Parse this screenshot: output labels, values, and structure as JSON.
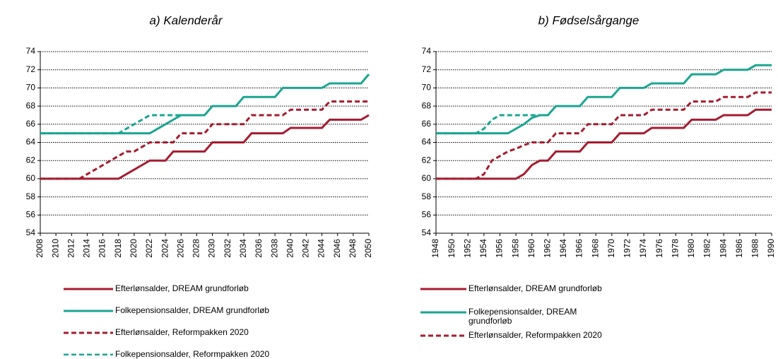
{
  "chart_data": [
    {
      "type": "line",
      "title": "a) Kalenderår",
      "x": [
        2008,
        2009,
        2010,
        2011,
        2012,
        2013,
        2014,
        2015,
        2016,
        2017,
        2018,
        2019,
        2020,
        2021,
        2022,
        2023,
        2024,
        2025,
        2026,
        2027,
        2028,
        2029,
        2030,
        2031,
        2032,
        2033,
        2034,
        2035,
        2036,
        2037,
        2038,
        2039,
        2040,
        2041,
        2042,
        2043,
        2044,
        2045,
        2046,
        2047,
        2048,
        2049,
        2050
      ],
      "xlim": [
        2008,
        2050
      ],
      "xticks": [
        2008,
        2010,
        2012,
        2014,
        2016,
        2018,
        2020,
        2022,
        2024,
        2026,
        2028,
        2030,
        2032,
        2034,
        2036,
        2038,
        2040,
        2042,
        2044,
        2046,
        2048,
        2050
      ],
      "ylim": [
        54,
        74
      ],
      "yticks": [
        54,
        56,
        58,
        60,
        62,
        64,
        66,
        68,
        70,
        72,
        74
      ],
      "grid": true,
      "series": [
        {
          "name": "Efterlønsalder, DREAM grundforløb",
          "color": "#a51c30",
          "dashed": false,
          "values": [
            60,
            60,
            60,
            60,
            60,
            60,
            60,
            60,
            60,
            60,
            60,
            60.5,
            61,
            61.5,
            62,
            62,
            62,
            63,
            63,
            63,
            63,
            63,
            64,
            64,
            64,
            64,
            64,
            65,
            65,
            65,
            65,
            65,
            65.6,
            65.6,
            65.6,
            65.6,
            65.6,
            66.5,
            66.5,
            66.5,
            66.5,
            66.5,
            67
          ]
        },
        {
          "name": "Folkepensionsalder,  DREAM grundforløb",
          "color": "#1ba592",
          "dashed": false,
          "values": [
            65,
            65,
            65,
            65,
            65,
            65,
            65,
            65,
            65,
            65,
            65,
            65,
            65,
            65,
            65,
            65.5,
            66,
            66.5,
            67,
            67,
            67,
            67,
            68,
            68,
            68,
            68,
            69,
            69,
            69,
            69,
            69,
            70,
            70,
            70,
            70,
            70,
            70,
            70.5,
            70.5,
            70.5,
            70.5,
            70.5,
            71.5
          ]
        },
        {
          "name": "Efterlønsalder, Reformpakken 2020",
          "color": "#a51c30",
          "dashed": true,
          "values": [
            60,
            60,
            60,
            60,
            60,
            60,
            60.5,
            61,
            61.5,
            62,
            62.5,
            63,
            63,
            63.5,
            64,
            64,
            64,
            64,
            65,
            65,
            65,
            65,
            66,
            66,
            66,
            66,
            66,
            67,
            67,
            67,
            67,
            67,
            67.6,
            67.6,
            67.6,
            67.6,
            67.6,
            68.5,
            68.5,
            68.5,
            68.5,
            68.5,
            68.5
          ]
        },
        {
          "name": "Folkepensionsalder,  Reformpakken 2020",
          "color": "#1ba592",
          "dashed": true,
          "values": [
            65,
            65,
            65,
            65,
            65,
            65,
            65,
            65,
            65,
            65,
            65,
            65.5,
            66,
            66.5,
            67,
            67,
            67,
            67,
            67,
            67,
            67,
            null,
            null,
            null,
            null,
            null,
            null,
            null,
            null,
            null,
            null,
            null,
            null,
            null,
            null,
            null,
            null,
            null,
            null,
            null,
            null,
            null,
            null
          ]
        }
      ]
    },
    {
      "type": "line",
      "title": "b) Fødselsårgange",
      "x": [
        1948,
        1949,
        1950,
        1951,
        1952,
        1953,
        1954,
        1955,
        1956,
        1957,
        1958,
        1959,
        1960,
        1961,
        1962,
        1963,
        1964,
        1965,
        1966,
        1967,
        1968,
        1969,
        1970,
        1971,
        1972,
        1973,
        1974,
        1975,
        1976,
        1977,
        1978,
        1979,
        1980,
        1981,
        1982,
        1983,
        1984,
        1985,
        1986,
        1987,
        1988,
        1989,
        1990
      ],
      "xlim": [
        1948,
        1990
      ],
      "xticks": [
        1948,
        1950,
        1952,
        1954,
        1956,
        1958,
        1960,
        1962,
        1964,
        1966,
        1968,
        1970,
        1972,
        1974,
        1976,
        1978,
        1980,
        1982,
        1984,
        1986,
        1988,
        1990
      ],
      "ylim": [
        54,
        74
      ],
      "yticks": [
        54,
        56,
        58,
        60,
        62,
        64,
        66,
        68,
        70,
        72,
        74
      ],
      "grid": true,
      "series": [
        {
          "name": "Efterlønsalder, DREAM grundforløb",
          "color": "#a51c30",
          "dashed": false,
          "values": [
            60,
            60,
            60,
            60,
            60,
            60,
            60,
            60,
            60,
            60,
            60,
            60.5,
            61.5,
            62,
            62,
            63,
            63,
            63,
            63,
            64,
            64,
            64,
            64,
            65,
            65,
            65,
            65,
            65.6,
            65.6,
            65.6,
            65.6,
            65.6,
            66.5,
            66.5,
            66.5,
            66.5,
            67,
            67,
            67,
            67,
            67.6,
            67.6,
            67.6
          ]
        },
        {
          "name": "Folkepensionsalder,  DREAM grundforløb",
          "color": "#1ba592",
          "dashed": false,
          "values": [
            65,
            65,
            65,
            65,
            65,
            65,
            65,
            65,
            65,
            65,
            65.5,
            66,
            66.7,
            67,
            67,
            68,
            68,
            68,
            68,
            69,
            69,
            69,
            69,
            70,
            70,
            70,
            70,
            70.5,
            70.5,
            70.5,
            70.5,
            70.5,
            71.5,
            71.5,
            71.5,
            71.5,
            72,
            72,
            72,
            72,
            72.5,
            72.5,
            72.5
          ]
        },
        {
          "name": "Efterlønsalder, Reformpakken 2020",
          "color": "#a51c30",
          "dashed": true,
          "values": [
            60,
            60,
            60,
            60,
            60,
            60,
            60.5,
            62,
            62.5,
            63,
            63.3,
            63.7,
            64,
            64,
            64,
            65,
            65,
            65,
            65,
            66,
            66,
            66,
            66,
            67,
            67,
            67,
            67,
            67.6,
            67.6,
            67.6,
            67.6,
            67.6,
            68.5,
            68.5,
            68.5,
            68.5,
            69,
            69,
            69,
            69,
            69.5,
            69.5,
            69.5
          ]
        },
        {
          "color": "#1ba592",
          "dashed": true,
          "values": [
            65,
            65,
            65,
            65,
            65,
            65,
            65.5,
            66.5,
            67,
            67,
            67,
            67,
            67,
            67,
            67,
            null,
            null,
            null,
            null,
            null,
            null,
            null,
            null,
            null,
            null,
            null,
            null,
            null,
            null,
            null,
            null,
            null,
            null,
            null,
            null,
            null,
            null,
            null,
            null,
            null,
            null,
            null,
            null
          ]
        }
      ]
    }
  ]
}
